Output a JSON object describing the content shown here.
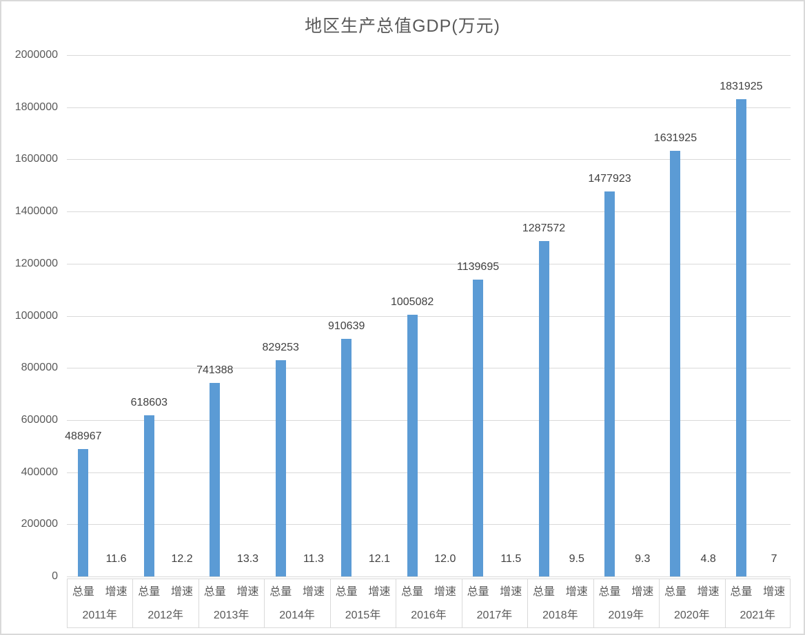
{
  "chart_data": {
    "type": "bar",
    "title": "地区生产总值GDP(万元)",
    "categories": [
      "2011年",
      "2012年",
      "2013年",
      "2014年",
      "2015年",
      "2016年",
      "2017年",
      "2018年",
      "2019年",
      "2020年",
      "2021年"
    ],
    "sub_categories": [
      "总量",
      "增速"
    ],
    "series": [
      {
        "name": "总量",
        "values": [
          488967,
          618603,
          741388,
          829253,
          910639,
          1005082,
          1139695,
          1287572,
          1477923,
          1631925,
          1831925
        ]
      },
      {
        "name": "增速",
        "values": [
          11.6,
          12.2,
          13.3,
          11.3,
          12.1,
          12.0,
          11.5,
          9.5,
          9.3,
          4.8,
          7
        ]
      }
    ],
    "bar_value_labels": [
      "488967",
      "618603",
      "741388",
      "829253",
      "910639",
      "1005082",
      "1139695",
      "1287572",
      "1477923",
      "1631925",
      "1831925"
    ],
    "growth_value_labels": [
      "11.6",
      "12.2",
      "13.3",
      "11.3",
      "12.1",
      "12.0",
      "11.5",
      "9.5",
      "9.3",
      "4.8",
      "7"
    ],
    "y_ticks": [
      "2000000",
      "1800000",
      "1600000",
      "1400000",
      "1200000",
      "1000000",
      "800000",
      "600000",
      "400000",
      "200000",
      "0"
    ],
    "ylim": [
      0,
      2000000
    ],
    "grid": true,
    "legend_position": "none",
    "bar_color": "#5b9bd5",
    "grid_color": "#d9d9d9",
    "axis_text_color": "#595959",
    "label_text_color": "#404040"
  }
}
